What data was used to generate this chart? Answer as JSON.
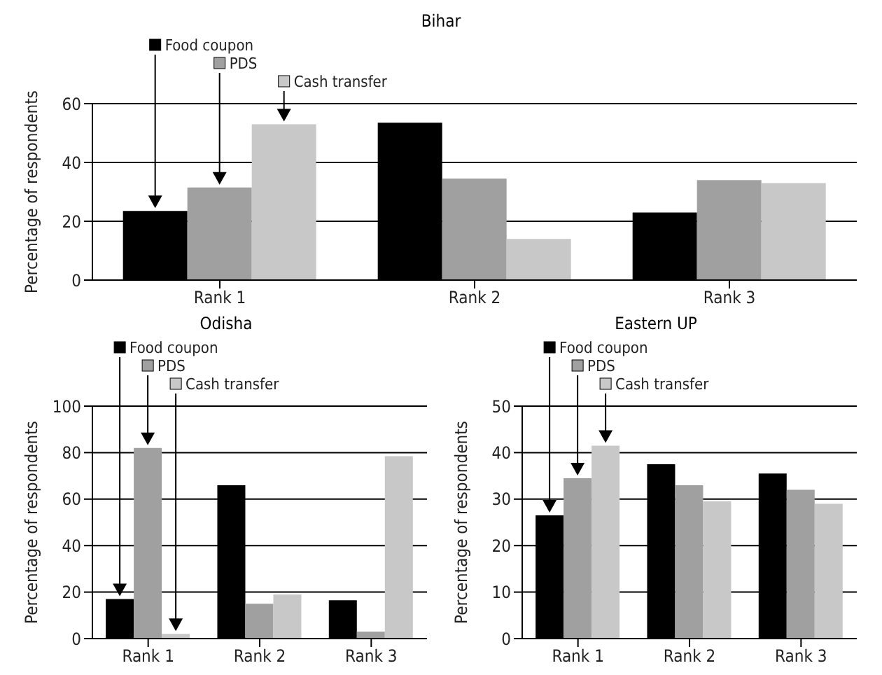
{
  "chart_data": [
    {
      "type": "bar",
      "title": "Bihar",
      "ylabel": "Percentage of respondents",
      "categories": [
        "Rank 1",
        "Rank 2",
        "Rank 3"
      ],
      "ylim": [
        0,
        60
      ],
      "yticks": [
        0,
        20,
        40,
        60
      ],
      "grid": "y",
      "legend": "top left",
      "series": [
        {
          "name": "Food coupon",
          "color": "#000000",
          "values": [
            23.5,
            53.5,
            23
          ]
        },
        {
          "name": "PDS",
          "color": "#a0a0a0",
          "values": [
            31.5,
            34.5,
            34
          ]
        },
        {
          "name": "Cash transfer",
          "color": "#c8c8c8",
          "values": [
            53,
            14,
            33
          ]
        }
      ]
    },
    {
      "type": "bar",
      "title": "Odisha",
      "ylabel": "Percentage of respondents",
      "categories": [
        "Rank 1",
        "Rank 2",
        "Rank 3"
      ],
      "ylim": [
        0,
        100
      ],
      "yticks": [
        0,
        20,
        40,
        60,
        80,
        100
      ],
      "grid": "y",
      "legend": "top left",
      "series": [
        {
          "name": "Food coupon",
          "color": "#000000",
          "values": [
            17,
            66,
            16.5
          ]
        },
        {
          "name": "PDS",
          "color": "#a0a0a0",
          "values": [
            82,
            15,
            3
          ]
        },
        {
          "name": "Cash transfer",
          "color": "#c8c8c8",
          "values": [
            2,
            19,
            78.5
          ]
        }
      ]
    },
    {
      "type": "bar",
      "title": "Eastern UP",
      "ylabel": "Percentage of respondents",
      "categories": [
        "Rank 1",
        "Rank 2",
        "Rank 3"
      ],
      "ylim": [
        0,
        50
      ],
      "yticks": [
        0,
        10,
        20,
        30,
        40,
        50
      ],
      "grid": "y",
      "legend": "top left",
      "series": [
        {
          "name": "Food coupon",
          "color": "#000000",
          "values": [
            26.5,
            37.5,
            35.5
          ]
        },
        {
          "name": "PDS",
          "color": "#a0a0a0",
          "values": [
            34.5,
            33,
            32
          ]
        },
        {
          "name": "Cash transfer",
          "color": "#c8c8c8",
          "values": [
            41.5,
            29.5,
            29
          ]
        }
      ]
    }
  ]
}
